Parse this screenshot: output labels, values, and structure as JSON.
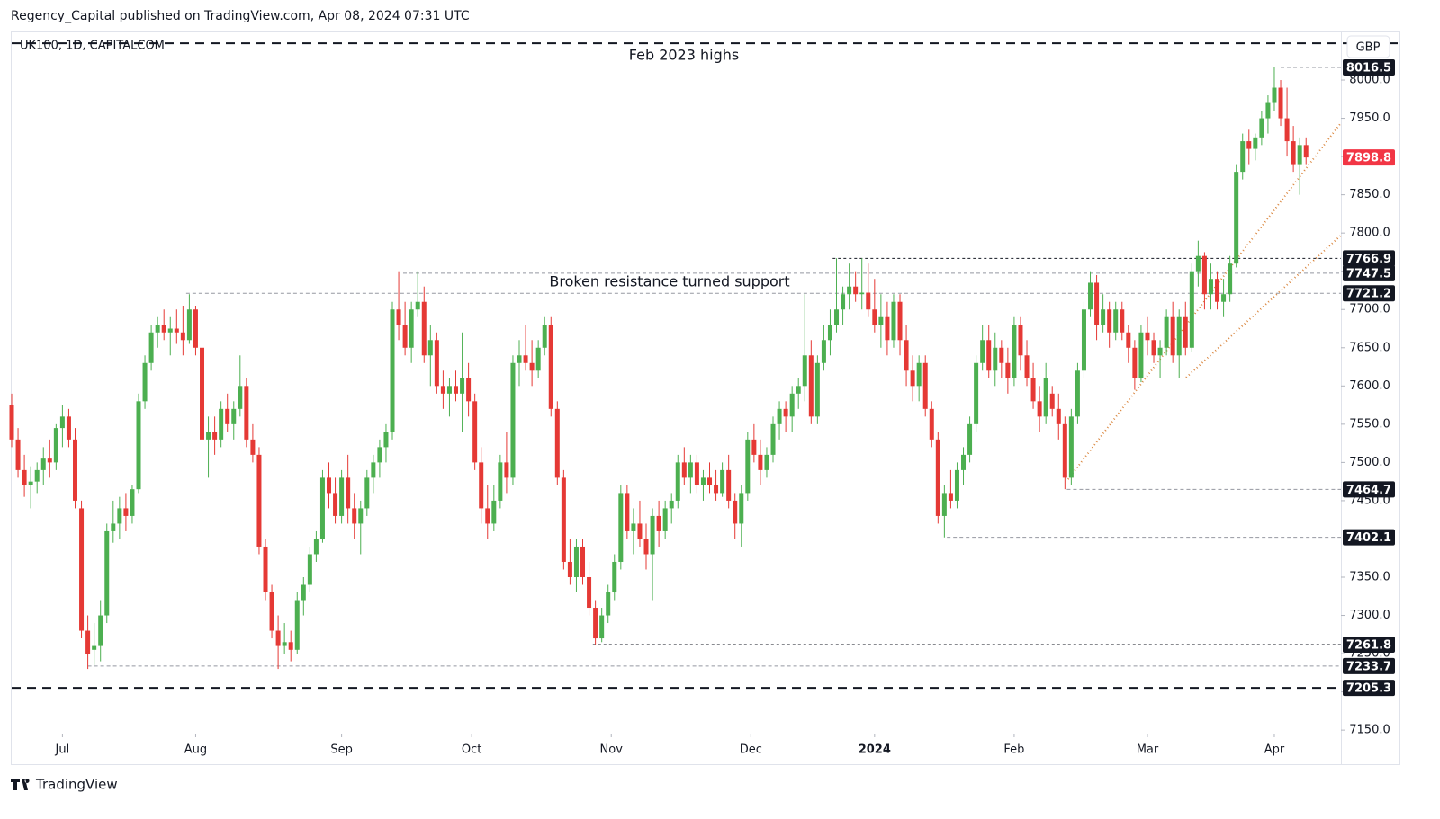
{
  "header": {
    "publisher": "Regency_Capital published on TradingView.com, Apr 08, 2024 07:31 UTC",
    "symbol": "UK100, 1D, CAPITALCOM",
    "currency": "GBP",
    "brand": "TradingView"
  },
  "chart_data": {
    "type": "candlestick",
    "up_color": "#4caf50",
    "down_color": "#e53935",
    "grid": false,
    "xlim": [
      0,
      209.5
    ],
    "ylim": [
      7105.5,
      8063.5
    ],
    "yticks": [
      {
        "value": 7150,
        "label": "7150.0"
      },
      {
        "value": 7200,
        "label": "7200.0"
      },
      {
        "value": 7250,
        "label": "7250.0"
      },
      {
        "value": 7300,
        "label": "7300.0"
      },
      {
        "value": 7350,
        "label": "7350.0"
      },
      {
        "value": 7400,
        "label": "7400.0"
      },
      {
        "value": 7450,
        "label": "7450.0"
      },
      {
        "value": 7500,
        "label": "7500.0"
      },
      {
        "value": 7550,
        "label": "7550.0"
      },
      {
        "value": 7600,
        "label": "7600.0"
      },
      {
        "value": 7650,
        "label": "7650.0"
      },
      {
        "value": 7700,
        "label": "7700.0"
      },
      {
        "value": 7750,
        "label": "7750.0"
      },
      {
        "value": 7800,
        "label": "7800.0"
      },
      {
        "value": 7850,
        "label": "7850.0"
      },
      {
        "value": 7900,
        "label": "7900.0"
      },
      {
        "value": 7950,
        "label": "7950.0"
      },
      {
        "value": 8000,
        "label": "8000.0"
      }
    ],
    "xticks": [
      {
        "value": 8,
        "label": "Jul"
      },
      {
        "value": 29,
        "label": "Aug"
      },
      {
        "value": 52,
        "label": "Sep"
      },
      {
        "value": 72.5,
        "label": "Oct"
      },
      {
        "value": 94.5,
        "label": "Nov"
      },
      {
        "value": 116.5,
        "label": "Dec"
      },
      {
        "value": 136,
        "label": "2024"
      },
      {
        "value": 158,
        "label": "Feb"
      },
      {
        "value": 179,
        "label": "Mar"
      },
      {
        "value": 199,
        "label": "Apr"
      }
    ],
    "feb_2023_high": {
      "value": 8048,
      "label": "Feb 2023 highs"
    },
    "annotation": "Broken resistance turned support",
    "levels": [
      {
        "value": 8016.5,
        "start": 200,
        "style": "dashed"
      },
      {
        "value": 7766.9,
        "start": 129.4,
        "style": "dashed-dark"
      },
      {
        "value": 7747.5,
        "start": 61.7,
        "style": "dashed"
      },
      {
        "value": 7721.2,
        "start": 27.5,
        "style": "dashed"
      },
      {
        "value": 7464.7,
        "start": 166.3,
        "style": "dashed"
      },
      {
        "value": 7402.1,
        "start": 147.4,
        "style": "dashed"
      },
      {
        "value": 7261.8,
        "start": 91.6,
        "style": "dashed-dark"
      },
      {
        "value": 7233.7,
        "start": 12,
        "style": "dashed"
      },
      {
        "value": 7205.3,
        "start": 0,
        "style": "bold"
      }
    ],
    "trendline_color": "#d9843b",
    "trendlines": [
      {
        "x": [
          166.5,
          209.5
        ],
        "y": [
          7478,
          7944
        ]
      },
      {
        "x": [
          185.1,
          209.5
        ],
        "y": [
          7611,
          7797
        ]
      }
    ],
    "candles": [
      [
        7575,
        7590,
        7520,
        7530
      ],
      [
        7530,
        7545,
        7480,
        7490
      ],
      [
        7490,
        7510,
        7455,
        7470
      ],
      [
        7470,
        7495,
        7440,
        7475
      ],
      [
        7475,
        7500,
        7460,
        7490
      ],
      [
        7490,
        7520,
        7470,
        7505
      ],
      [
        7505,
        7530,
        7480,
        7500
      ],
      [
        7500,
        7550,
        7490,
        7545
      ],
      [
        7545,
        7575,
        7520,
        7560
      ],
      [
        7560,
        7570,
        7520,
        7530
      ],
      [
        7530,
        7545,
        7440,
        7450
      ],
      [
        7440,
        7450,
        7270,
        7280
      ],
      [
        7280,
        7300,
        7230,
        7250
      ],
      [
        7255,
        7290,
        7235,
        7260
      ],
      [
        7260,
        7320,
        7240,
        7300
      ],
      [
        7300,
        7420,
        7290,
        7410
      ],
      [
        7410,
        7450,
        7395,
        7420
      ],
      [
        7420,
        7455,
        7400,
        7440
      ],
      [
        7440,
        7460,
        7410,
        7430
      ],
      [
        7430,
        7470,
        7420,
        7465
      ],
      [
        7465,
        7590,
        7460,
        7580
      ],
      [
        7580,
        7640,
        7570,
        7630
      ],
      [
        7630,
        7680,
        7620,
        7670
      ],
      [
        7670,
        7690,
        7650,
        7680
      ],
      [
        7680,
        7700,
        7660,
        7670
      ],
      [
        7670,
        7690,
        7640,
        7675
      ],
      [
        7675,
        7700,
        7655,
        7670
      ],
      [
        7670,
        7705,
        7640,
        7660
      ],
      [
        7660,
        7720,
        7655,
        7700
      ],
      [
        7700,
        7705,
        7640,
        7650
      ],
      [
        7650,
        7655,
        7520,
        7530
      ],
      [
        7530,
        7560,
        7480,
        7540
      ],
      [
        7540,
        7560,
        7510,
        7530
      ],
      [
        7530,
        7580,
        7520,
        7570
      ],
      [
        7570,
        7590,
        7540,
        7550
      ],
      [
        7550,
        7580,
        7530,
        7570
      ],
      [
        7570,
        7640,
        7560,
        7600
      ],
      [
        7600,
        7610,
        7520,
        7530
      ],
      [
        7530,
        7550,
        7500,
        7510
      ],
      [
        7510,
        7520,
        7380,
        7390
      ],
      [
        7390,
        7400,
        7320,
        7330
      ],
      [
        7330,
        7340,
        7270,
        7280
      ],
      [
        7280,
        7300,
        7230,
        7260
      ],
      [
        7260,
        7290,
        7250,
        7265
      ],
      [
        7265,
        7280,
        7240,
        7255
      ],
      [
        7255,
        7330,
        7250,
        7320
      ],
      [
        7320,
        7350,
        7300,
        7340
      ],
      [
        7340,
        7390,
        7330,
        7380
      ],
      [
        7380,
        7410,
        7370,
        7400
      ],
      [
        7400,
        7490,
        7395,
        7480
      ],
      [
        7480,
        7500,
        7440,
        7460
      ],
      [
        7460,
        7480,
        7420,
        7430
      ],
      [
        7430,
        7490,
        7420,
        7480
      ],
      [
        7480,
        7510,
        7420,
        7440
      ],
      [
        7440,
        7460,
        7400,
        7420
      ],
      [
        7420,
        7450,
        7380,
        7440
      ],
      [
        7440,
        7490,
        7430,
        7480
      ],
      [
        7480,
        7510,
        7460,
        7500
      ],
      [
        7500,
        7530,
        7480,
        7520
      ],
      [
        7520,
        7550,
        7500,
        7540
      ],
      [
        7540,
        7710,
        7530,
        7700
      ],
      [
        7700,
        7750,
        7660,
        7680
      ],
      [
        7680,
        7710,
        7640,
        7650
      ],
      [
        7650,
        7710,
        7630,
        7700
      ],
      [
        7700,
        7750,
        7690,
        7710
      ],
      [
        7710,
        7730,
        7630,
        7640
      ],
      [
        7640,
        7680,
        7600,
        7660
      ],
      [
        7660,
        7670,
        7590,
        7600
      ],
      [
        7600,
        7620,
        7570,
        7590
      ],
      [
        7590,
        7610,
        7560,
        7600
      ],
      [
        7600,
        7620,
        7580,
        7590
      ],
      [
        7590,
        7670,
        7540,
        7610
      ],
      [
        7610,
        7630,
        7560,
        7580
      ],
      [
        7580,
        7590,
        7490,
        7500
      ],
      [
        7500,
        7520,
        7420,
        7440
      ],
      [
        7440,
        7470,
        7400,
        7420
      ],
      [
        7420,
        7470,
        7410,
        7450
      ],
      [
        7450,
        7510,
        7440,
        7500
      ],
      [
        7500,
        7540,
        7460,
        7480
      ],
      [
        7480,
        7640,
        7470,
        7630
      ],
      [
        7630,
        7660,
        7600,
        7640
      ],
      [
        7640,
        7680,
        7620,
        7630
      ],
      [
        7630,
        7660,
        7600,
        7620
      ],
      [
        7620,
        7660,
        7610,
        7650
      ],
      [
        7650,
        7690,
        7640,
        7680
      ],
      [
        7680,
        7690,
        7560,
        7570
      ],
      [
        7570,
        7580,
        7470,
        7480
      ],
      [
        7480,
        7490,
        7360,
        7370
      ],
      [
        7370,
        7400,
        7340,
        7350
      ],
      [
        7350,
        7400,
        7330,
        7390
      ],
      [
        7390,
        7400,
        7340,
        7350
      ],
      [
        7350,
        7370,
        7300,
        7310
      ],
      [
        7310,
        7320,
        7262,
        7270
      ],
      [
        7270,
        7310,
        7265,
        7300
      ],
      [
        7300,
        7340,
        7290,
        7330
      ],
      [
        7330,
        7380,
        7320,
        7370
      ],
      [
        7370,
        7470,
        7360,
        7460
      ],
      [
        7460,
        7470,
        7400,
        7410
      ],
      [
        7410,
        7440,
        7380,
        7420
      ],
      [
        7420,
        7450,
        7390,
        7400
      ],
      [
        7400,
        7420,
        7360,
        7380
      ],
      [
        7380,
        7440,
        7320,
        7430
      ],
      [
        7430,
        7450,
        7390,
        7410
      ],
      [
        7410,
        7450,
        7400,
        7440
      ],
      [
        7440,
        7460,
        7420,
        7450
      ],
      [
        7450,
        7510,
        7440,
        7500
      ],
      [
        7500,
        7520,
        7470,
        7480
      ],
      [
        7480,
        7510,
        7460,
        7500
      ],
      [
        7500,
        7510,
        7460,
        7470
      ],
      [
        7470,
        7490,
        7450,
        7480
      ],
      [
        7480,
        7500,
        7460,
        7470
      ],
      [
        7470,
        7490,
        7450,
        7460
      ],
      [
        7460,
        7500,
        7455,
        7490
      ],
      [
        7490,
        7510,
        7440,
        7450
      ],
      [
        7450,
        7460,
        7400,
        7420
      ],
      [
        7420,
        7470,
        7390,
        7460
      ],
      [
        7460,
        7540,
        7450,
        7530
      ],
      [
        7530,
        7550,
        7500,
        7510
      ],
      [
        7510,
        7530,
        7470,
        7490
      ],
      [
        7490,
        7520,
        7480,
        7510
      ],
      [
        7510,
        7560,
        7500,
        7550
      ],
      [
        7550,
        7580,
        7530,
        7570
      ],
      [
        7570,
        7580,
        7540,
        7560
      ],
      [
        7560,
        7600,
        7540,
        7590
      ],
      [
        7590,
        7610,
        7570,
        7600
      ],
      [
        7600,
        7720,
        7580,
        7640
      ],
      [
        7640,
        7660,
        7550,
        7560
      ],
      [
        7560,
        7640,
        7550,
        7630
      ],
      [
        7630,
        7680,
        7620,
        7660
      ],
      [
        7660,
        7700,
        7640,
        7680
      ],
      [
        7680,
        7767,
        7670,
        7700
      ],
      [
        7700,
        7730,
        7680,
        7720
      ],
      [
        7720,
        7760,
        7700,
        7730
      ],
      [
        7730,
        7750,
        7710,
        7720
      ],
      [
        7720,
        7767,
        7700,
        7722
      ],
      [
        7722,
        7760,
        7690,
        7700
      ],
      [
        7700,
        7740,
        7670,
        7680
      ],
      [
        7680,
        7720,
        7650,
        7690
      ],
      [
        7690,
        7710,
        7640,
        7660
      ],
      [
        7660,
        7720,
        7650,
        7710
      ],
      [
        7710,
        7720,
        7640,
        7660
      ],
      [
        7660,
        7680,
        7600,
        7620
      ],
      [
        7620,
        7640,
        7580,
        7600
      ],
      [
        7600,
        7640,
        7580,
        7630
      ],
      [
        7630,
        7640,
        7560,
        7570
      ],
      [
        7570,
        7580,
        7520,
        7530
      ],
      [
        7530,
        7540,
        7420,
        7430
      ],
      [
        7430,
        7470,
        7402,
        7460
      ],
      [
        7460,
        7490,
        7440,
        7450
      ],
      [
        7450,
        7500,
        7440,
        7490
      ],
      [
        7490,
        7520,
        7470,
        7510
      ],
      [
        7510,
        7560,
        7500,
        7550
      ],
      [
        7550,
        7640,
        7540,
        7630
      ],
      [
        7630,
        7680,
        7620,
        7660
      ],
      [
        7660,
        7680,
        7610,
        7620
      ],
      [
        7620,
        7670,
        7600,
        7650
      ],
      [
        7650,
        7660,
        7610,
        7630
      ],
      [
        7630,
        7650,
        7590,
        7610
      ],
      [
        7610,
        7690,
        7600,
        7680
      ],
      [
        7680,
        7690,
        7620,
        7640
      ],
      [
        7640,
        7660,
        7600,
        7610
      ],
      [
        7610,
        7630,
        7570,
        7580
      ],
      [
        7580,
        7600,
        7540,
        7560
      ],
      [
        7560,
        7630,
        7550,
        7610
      ],
      [
        7590,
        7600,
        7560,
        7570
      ],
      [
        7570,
        7590,
        7530,
        7550
      ],
      [
        7550,
        7560,
        7465,
        7480
      ],
      [
        7480,
        7570,
        7470,
        7560
      ],
      [
        7560,
        7630,
        7550,
        7620
      ],
      [
        7620,
        7710,
        7610,
        7700
      ],
      [
        7700,
        7750,
        7690,
        7735
      ],
      [
        7735,
        7745,
        7660,
        7680
      ],
      [
        7680,
        7720,
        7670,
        7700
      ],
      [
        7700,
        7710,
        7650,
        7670
      ],
      [
        7670,
        7710,
        7660,
        7700
      ],
      [
        7700,
        7710,
        7660,
        7670
      ],
      [
        7670,
        7680,
        7630,
        7650
      ],
      [
        7650,
        7660,
        7595,
        7610
      ],
      [
        7610,
        7680,
        7605,
        7670
      ],
      [
        7670,
        7690,
        7640,
        7660
      ],
      [
        7660,
        7670,
        7630,
        7640
      ],
      [
        7640,
        7660,
        7610,
        7650
      ],
      [
        7650,
        7700,
        7640,
        7690
      ],
      [
        7690,
        7710,
        7630,
        7640
      ],
      [
        7640,
        7700,
        7610,
        7690
      ],
      [
        7690,
        7710,
        7640,
        7650
      ],
      [
        7650,
        7760,
        7645,
        7750
      ],
      [
        7750,
        7790,
        7730,
        7770
      ],
      [
        7770,
        7775,
        7700,
        7720
      ],
      [
        7720,
        7760,
        7700,
        7740
      ],
      [
        7740,
        7750,
        7700,
        7710
      ],
      [
        7710,
        7740,
        7690,
        7720
      ],
      [
        7720,
        7770,
        7710,
        7760
      ],
      [
        7760,
        7890,
        7755,
        7880
      ],
      [
        7880,
        7930,
        7870,
        7920
      ],
      [
        7920,
        7935,
        7890,
        7910
      ],
      [
        7910,
        7930,
        7895,
        7925
      ],
      [
        7925,
        7960,
        7915,
        7950
      ],
      [
        7950,
        7980,
        7930,
        7970
      ],
      [
        7970,
        8016.5,
        7960,
        7990
      ],
      [
        7990,
        8000,
        7940,
        7950
      ],
      [
        7950,
        7990,
        7900,
        7920
      ],
      [
        7920,
        7940,
        7880,
        7890
      ],
      [
        7890,
        7925,
        7850,
        7915
      ],
      [
        7915,
        7925,
        7890,
        7898.8
      ]
    ]
  }
}
